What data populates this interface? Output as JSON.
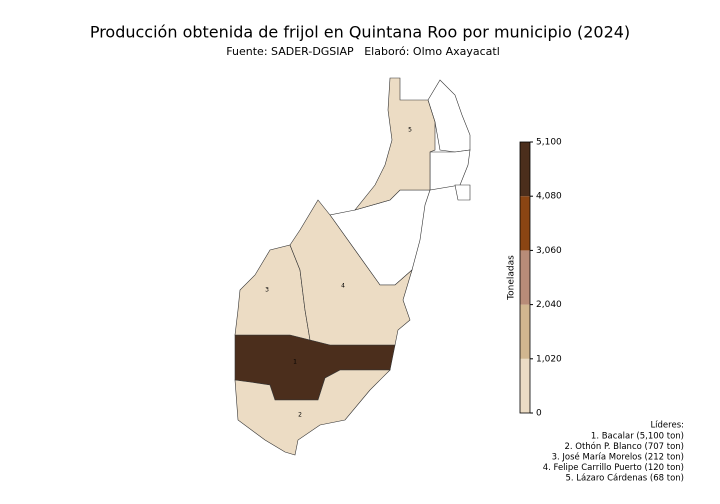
{
  "header": {
    "title": "Producción obtenida de frijol en Quintana Roo por municipio (2024)",
    "source": "Fuente: SADER-DGSIAP",
    "author": "Elaboró: Olmo Axayacatl"
  },
  "map": {
    "regions": [
      {
        "label": "1",
        "value": 5100
      },
      {
        "label": "2",
        "value": 707
      },
      {
        "label": "3",
        "value": 212
      },
      {
        "label": "4",
        "value": 120
      },
      {
        "label": "5",
        "value": 68
      }
    ],
    "colorbar": {
      "label": "Toneladas",
      "lim": [
        0,
        5100
      ],
      "ticks": [
        0,
        {
          "value": 1020,
          "label": "1,020"
        },
        {
          "value": 2040,
          "label": "2,040"
        },
        {
          "value": 3060,
          "label": "3,060"
        },
        {
          "value": 4080,
          "label": "4,080"
        },
        {
          "value": 5100,
          "label": "5,100"
        }
      ],
      "colors": [
        "#ecdcc4",
        "#d1b68f",
        "#b88c78",
        "#8b4513",
        "#4b2e1c"
      ]
    },
    "leaders": {
      "title": "Líderes:",
      "items": [
        "1. Bacalar (5,100 ton)",
        "2. Othón P. Blanco (707 ton)",
        "3. José María Morelos (212 ton)",
        "4. Felipe Carrillo Puerto (120 ton)",
        "5. Lázaro Cárdenas (68 ton)"
      ]
    }
  }
}
